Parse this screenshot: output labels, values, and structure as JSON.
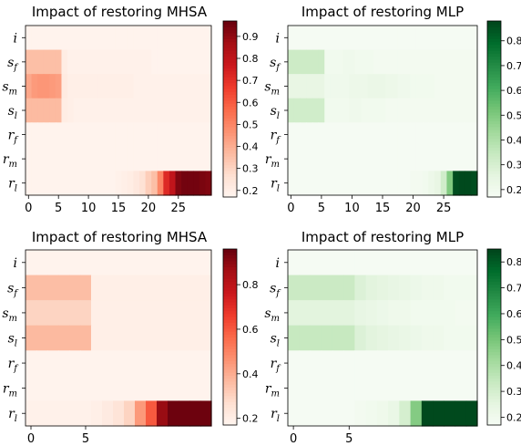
{
  "chart_data": [
    {
      "type": "heatmap",
      "title": "Impact of restoring MHSA",
      "rows": [
        "i",
        "s_f",
        "s_m",
        "s_l",
        "r_f",
        "r_m",
        "r_l"
      ],
      "row_labels": [
        {
          "base": "i",
          "sub": ""
        },
        {
          "base": "s",
          "sub": "f"
        },
        {
          "base": "s",
          "sub": "m"
        },
        {
          "base": "s",
          "sub": "l"
        },
        {
          "base": "r",
          "sub": "f"
        },
        {
          "base": "r",
          "sub": "m"
        },
        {
          "base": "r",
          "sub": "l"
        }
      ],
      "xticks": [
        0,
        5,
        10,
        15,
        20,
        25
      ],
      "ncols": 31,
      "colormap": "Reds",
      "colorbar": {
        "min": 0.17,
        "max": 0.97,
        "ticks": [
          "0.2",
          "0.3",
          "0.4",
          "0.5",
          "0.6",
          "0.7",
          "0.8",
          "0.9"
        ]
      },
      "values": [
        [
          0.18,
          0.18,
          0.18,
          0.18,
          0.18,
          0.18,
          0.18,
          0.18,
          0.18,
          0.18,
          0.18,
          0.18,
          0.18,
          0.18,
          0.18,
          0.18,
          0.18,
          0.18,
          0.18,
          0.18,
          0.18,
          0.18,
          0.18,
          0.18,
          0.18,
          0.18,
          0.18,
          0.18,
          0.18,
          0.18,
          0.18
        ],
        [
          0.36,
          0.36,
          0.36,
          0.36,
          0.36,
          0.36,
          0.21,
          0.19,
          0.19,
          0.19,
          0.19,
          0.19,
          0.19,
          0.19,
          0.19,
          0.19,
          0.19,
          0.19,
          0.19,
          0.19,
          0.19,
          0.18,
          0.18,
          0.18,
          0.18,
          0.18,
          0.18,
          0.18,
          0.18,
          0.18,
          0.18
        ],
        [
          0.42,
          0.45,
          0.46,
          0.46,
          0.45,
          0.44,
          0.22,
          0.2,
          0.2,
          0.2,
          0.2,
          0.2,
          0.2,
          0.2,
          0.2,
          0.2,
          0.2,
          0.2,
          0.19,
          0.19,
          0.19,
          0.19,
          0.19,
          0.19,
          0.19,
          0.19,
          0.19,
          0.19,
          0.19,
          0.19,
          0.19
        ],
        [
          0.37,
          0.37,
          0.37,
          0.37,
          0.37,
          0.37,
          0.21,
          0.2,
          0.19,
          0.19,
          0.19,
          0.19,
          0.19,
          0.19,
          0.19,
          0.19,
          0.19,
          0.19,
          0.19,
          0.19,
          0.19,
          0.19,
          0.19,
          0.19,
          0.19,
          0.19,
          0.19,
          0.19,
          0.19,
          0.19,
          0.19
        ],
        [
          0.18,
          0.18,
          0.18,
          0.18,
          0.18,
          0.18,
          0.18,
          0.18,
          0.18,
          0.18,
          0.18,
          0.18,
          0.18,
          0.18,
          0.18,
          0.18,
          0.18,
          0.18,
          0.18,
          0.18,
          0.18,
          0.18,
          0.18,
          0.18,
          0.18,
          0.18,
          0.18,
          0.18,
          0.18,
          0.18,
          0.18
        ],
        [
          0.18,
          0.18,
          0.18,
          0.18,
          0.18,
          0.18,
          0.18,
          0.18,
          0.18,
          0.18,
          0.18,
          0.18,
          0.18,
          0.18,
          0.18,
          0.18,
          0.18,
          0.18,
          0.18,
          0.18,
          0.18,
          0.18,
          0.18,
          0.18,
          0.18,
          0.18,
          0.18,
          0.18,
          0.18,
          0.18,
          0.18
        ],
        [
          0.18,
          0.18,
          0.18,
          0.18,
          0.18,
          0.18,
          0.18,
          0.18,
          0.18,
          0.18,
          0.18,
          0.18,
          0.18,
          0.18,
          0.18,
          0.19,
          0.2,
          0.21,
          0.23,
          0.26,
          0.32,
          0.36,
          0.5,
          0.72,
          0.8,
          0.93,
          0.95,
          0.95,
          0.95,
          0.94,
          0.93
        ]
      ]
    },
    {
      "type": "heatmap",
      "title": "Impact of restoring MLP",
      "rows": [
        "i",
        "s_f",
        "s_m",
        "s_l",
        "r_f",
        "r_m",
        "r_l"
      ],
      "row_labels": [
        {
          "base": "i",
          "sub": ""
        },
        {
          "base": "s",
          "sub": "f"
        },
        {
          "base": "s",
          "sub": "m"
        },
        {
          "base": "s",
          "sub": "l"
        },
        {
          "base": "r",
          "sub": "f"
        },
        {
          "base": "r",
          "sub": "m"
        },
        {
          "base": "r",
          "sub": "l"
        }
      ],
      "xticks": [
        0,
        5,
        10,
        15,
        20,
        25
      ],
      "ncols": 31,
      "colormap": "Greens",
      "colorbar": {
        "min": 0.17,
        "max": 0.88,
        "ticks": [
          "0.2",
          "0.3",
          "0.4",
          "0.5",
          "0.6",
          "0.7",
          "0.8"
        ]
      },
      "values": [
        [
          0.18,
          0.18,
          0.18,
          0.18,
          0.18,
          0.18,
          0.18,
          0.18,
          0.18,
          0.18,
          0.18,
          0.18,
          0.18,
          0.18,
          0.18,
          0.18,
          0.18,
          0.18,
          0.18,
          0.18,
          0.18,
          0.18,
          0.18,
          0.18,
          0.18,
          0.18,
          0.18,
          0.18,
          0.18,
          0.18,
          0.18
        ],
        [
          0.33,
          0.33,
          0.33,
          0.33,
          0.33,
          0.33,
          0.2,
          0.2,
          0.2,
          0.21,
          0.21,
          0.2,
          0.2,
          0.2,
          0.19,
          0.19,
          0.19,
          0.19,
          0.19,
          0.19,
          0.19,
          0.19,
          0.19,
          0.19,
          0.19,
          0.19,
          0.19,
          0.19,
          0.19,
          0.19,
          0.19
        ],
        [
          0.24,
          0.24,
          0.24,
          0.24,
          0.24,
          0.24,
          0.21,
          0.21,
          0.21,
          0.21,
          0.22,
          0.22,
          0.22,
          0.23,
          0.23,
          0.23,
          0.22,
          0.22,
          0.21,
          0.21,
          0.2,
          0.2,
          0.2,
          0.2,
          0.19,
          0.19,
          0.19,
          0.19,
          0.19,
          0.19,
          0.19
        ],
        [
          0.32,
          0.32,
          0.32,
          0.32,
          0.32,
          0.32,
          0.2,
          0.2,
          0.2,
          0.2,
          0.21,
          0.21,
          0.2,
          0.2,
          0.2,
          0.2,
          0.19,
          0.19,
          0.19,
          0.19,
          0.19,
          0.19,
          0.19,
          0.19,
          0.19,
          0.19,
          0.19,
          0.19,
          0.19,
          0.19,
          0.19
        ],
        [
          0.18,
          0.18,
          0.18,
          0.18,
          0.18,
          0.18,
          0.18,
          0.18,
          0.18,
          0.18,
          0.18,
          0.18,
          0.18,
          0.18,
          0.18,
          0.18,
          0.18,
          0.18,
          0.18,
          0.18,
          0.18,
          0.18,
          0.18,
          0.18,
          0.18,
          0.18,
          0.18,
          0.18,
          0.18,
          0.18,
          0.18
        ],
        [
          0.18,
          0.18,
          0.18,
          0.18,
          0.18,
          0.18,
          0.18,
          0.18,
          0.18,
          0.18,
          0.18,
          0.18,
          0.18,
          0.18,
          0.18,
          0.18,
          0.18,
          0.18,
          0.18,
          0.18,
          0.18,
          0.18,
          0.18,
          0.18,
          0.18,
          0.18,
          0.18,
          0.18,
          0.18,
          0.18,
          0.18
        ],
        [
          0.18,
          0.18,
          0.18,
          0.18,
          0.18,
          0.18,
          0.18,
          0.18,
          0.18,
          0.18,
          0.18,
          0.18,
          0.18,
          0.18,
          0.18,
          0.18,
          0.18,
          0.18,
          0.18,
          0.18,
          0.19,
          0.19,
          0.2,
          0.22,
          0.24,
          0.32,
          0.5,
          0.86,
          0.87,
          0.87,
          0.86
        ]
      ]
    },
    {
      "type": "heatmap",
      "title": "Impact of restoring MHSA",
      "rows": [
        "i",
        "s_f",
        "s_m",
        "s_l",
        "r_f",
        "r_m",
        "r_l"
      ],
      "row_labels": [
        {
          "base": "i",
          "sub": ""
        },
        {
          "base": "s",
          "sub": "f"
        },
        {
          "base": "s",
          "sub": "m"
        },
        {
          "base": "s",
          "sub": "l"
        },
        {
          "base": "r",
          "sub": "f"
        },
        {
          "base": "r",
          "sub": "m"
        },
        {
          "base": "r",
          "sub": "l"
        }
      ],
      "xticks": [
        0,
        5
      ],
      "ncols": 17,
      "colormap": "Reds",
      "colorbar": {
        "min": 0.17,
        "max": 0.96,
        "ticks": [
          "0.2",
          "0.4",
          "0.6",
          "0.8"
        ]
      },
      "values": [
        [
          0.18,
          0.18,
          0.18,
          0.18,
          0.18,
          0.18,
          0.18,
          0.18,
          0.18,
          0.18,
          0.18,
          0.18,
          0.18,
          0.18,
          0.18,
          0.18,
          0.18
        ],
        [
          0.36,
          0.36,
          0.36,
          0.36,
          0.36,
          0.36,
          0.2,
          0.2,
          0.2,
          0.2,
          0.2,
          0.2,
          0.2,
          0.2,
          0.2,
          0.2,
          0.2
        ],
        [
          0.3,
          0.3,
          0.3,
          0.3,
          0.3,
          0.3,
          0.2,
          0.2,
          0.2,
          0.2,
          0.2,
          0.2,
          0.2,
          0.2,
          0.2,
          0.2,
          0.2
        ],
        [
          0.37,
          0.37,
          0.37,
          0.37,
          0.37,
          0.37,
          0.2,
          0.2,
          0.2,
          0.2,
          0.2,
          0.2,
          0.2,
          0.2,
          0.2,
          0.2,
          0.2
        ],
        [
          0.18,
          0.18,
          0.18,
          0.18,
          0.18,
          0.18,
          0.18,
          0.18,
          0.18,
          0.18,
          0.18,
          0.18,
          0.18,
          0.18,
          0.18,
          0.18,
          0.18
        ],
        [
          0.18,
          0.18,
          0.18,
          0.18,
          0.18,
          0.18,
          0.18,
          0.18,
          0.18,
          0.18,
          0.18,
          0.18,
          0.18,
          0.18,
          0.18,
          0.18,
          0.18
        ],
        [
          0.19,
          0.19,
          0.19,
          0.19,
          0.19,
          0.19,
          0.2,
          0.22,
          0.25,
          0.3,
          0.45,
          0.6,
          0.88,
          0.95,
          0.95,
          0.95,
          0.95
        ]
      ]
    },
    {
      "type": "heatmap",
      "title": "Impact of restoring MLP",
      "rows": [
        "i",
        "s_f",
        "s_m",
        "s_l",
        "r_f",
        "r_m",
        "r_l"
      ],
      "row_labels": [
        {
          "base": "i",
          "sub": ""
        },
        {
          "base": "s",
          "sub": "f"
        },
        {
          "base": "s",
          "sub": "m"
        },
        {
          "base": "s",
          "sub": "l"
        },
        {
          "base": "r",
          "sub": "f"
        },
        {
          "base": "r",
          "sub": "m"
        },
        {
          "base": "r",
          "sub": "l"
        }
      ],
      "xticks": [
        0,
        5
      ],
      "ncols": 17,
      "colormap": "Greens",
      "colorbar": {
        "min": 0.17,
        "max": 0.85,
        "ticks": [
          "0.2",
          "0.3",
          "0.4",
          "0.5",
          "0.6",
          "0.7",
          "0.8"
        ]
      },
      "values": [
        [
          0.18,
          0.18,
          0.18,
          0.18,
          0.18,
          0.18,
          0.18,
          0.18,
          0.18,
          0.18,
          0.18,
          0.18,
          0.18,
          0.18,
          0.18,
          0.18,
          0.18
        ],
        [
          0.33,
          0.33,
          0.33,
          0.33,
          0.33,
          0.33,
          0.28,
          0.26,
          0.25,
          0.24,
          0.23,
          0.22,
          0.21,
          0.21,
          0.2,
          0.2,
          0.2
        ],
        [
          0.26,
          0.26,
          0.26,
          0.26,
          0.26,
          0.26,
          0.24,
          0.23,
          0.22,
          0.21,
          0.21,
          0.2,
          0.2,
          0.2,
          0.2,
          0.19,
          0.19
        ],
        [
          0.34,
          0.34,
          0.34,
          0.34,
          0.34,
          0.34,
          0.28,
          0.26,
          0.25,
          0.24,
          0.23,
          0.22,
          0.21,
          0.21,
          0.2,
          0.2,
          0.2
        ],
        [
          0.18,
          0.18,
          0.18,
          0.18,
          0.18,
          0.18,
          0.18,
          0.18,
          0.18,
          0.18,
          0.18,
          0.18,
          0.18,
          0.18,
          0.18,
          0.18,
          0.18
        ],
        [
          0.18,
          0.18,
          0.18,
          0.18,
          0.18,
          0.18,
          0.18,
          0.18,
          0.18,
          0.18,
          0.18,
          0.18,
          0.18,
          0.18,
          0.18,
          0.18,
          0.18
        ],
        [
          0.18,
          0.18,
          0.18,
          0.18,
          0.18,
          0.18,
          0.19,
          0.2,
          0.21,
          0.23,
          0.3,
          0.48,
          0.84,
          0.84,
          0.84,
          0.84,
          0.84
        ]
      ]
    }
  ]
}
